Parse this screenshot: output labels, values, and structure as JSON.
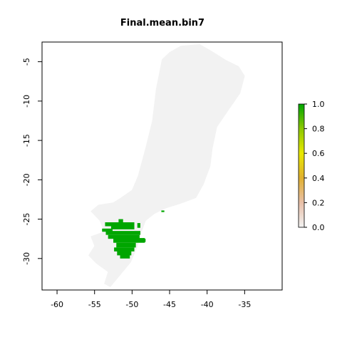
{
  "chart_data": {
    "type": "heatmap",
    "title": "Final.mean.bin7",
    "xlabel": "",
    "ylabel": "",
    "xlim": [
      -62,
      -30
    ],
    "ylim": [
      -34,
      -2.5
    ],
    "x_ticks": [
      -60,
      -55,
      -50,
      -45,
      -40,
      -35
    ],
    "y_ticks": [
      -5,
      -10,
      -15,
      -20,
      -25,
      -30
    ],
    "x_tick_labels": [
      "-60",
      "-55",
      "-50",
      "-45",
      "-40",
      "-35"
    ],
    "y_tick_labels": [
      "-5",
      "-10",
      "-15",
      "-20",
      "-25",
      "-30"
    ],
    "legend": {
      "position": "right",
      "ticks": [
        0.0,
        0.2,
        0.4,
        0.6,
        0.8,
        1.0
      ],
      "tick_labels": [
        "0.0",
        "0.2",
        "0.4",
        "0.6",
        "0.8",
        "1.0"
      ],
      "color_stops": [
        {
          "value": 0.0,
          "color": "#f2f2f2"
        },
        {
          "value": 0.2,
          "color": "#e8bfa8"
        },
        {
          "value": 0.4,
          "color": "#e0b030"
        },
        {
          "value": 0.6,
          "color": "#e8e800"
        },
        {
          "value": 0.8,
          "color": "#8cc800"
        },
        {
          "value": 1.0,
          "color": "#00a600"
        }
      ]
    },
    "background_region": {
      "value": 0,
      "color": "#f2f2f2",
      "outline": [
        [
          -55.5,
          -24.0
        ],
        [
          -54.5,
          -23.2
        ],
        [
          -52.5,
          -22.9
        ],
        [
          -51.5,
          -22.3
        ],
        [
          -50.0,
          -21.3
        ],
        [
          -49.2,
          -19.5
        ],
        [
          -48.2,
          -16.0
        ],
        [
          -47.3,
          -12.5
        ],
        [
          -46.8,
          -8.5
        ],
        [
          -46.0,
          -4.7
        ],
        [
          -45.0,
          -3.8
        ],
        [
          -43.5,
          -3.0
        ],
        [
          -41.0,
          -2.8
        ],
        [
          -39.5,
          -3.6
        ],
        [
          -37.5,
          -4.8
        ],
        [
          -35.8,
          -5.6
        ],
        [
          -35.0,
          -6.8
        ],
        [
          -35.6,
          -9.0
        ],
        [
          -37.2,
          -11.2
        ],
        [
          -38.7,
          -13.3
        ],
        [
          -39.3,
          -16.0
        ],
        [
          -39.6,
          -18.3
        ],
        [
          -40.5,
          -20.6
        ],
        [
          -41.5,
          -22.3
        ],
        [
          -43.5,
          -23.0
        ],
        [
          -45.5,
          -23.6
        ],
        [
          -47.0,
          -24.3
        ],
        [
          -48.2,
          -25.2
        ],
        [
          -48.7,
          -26.5
        ],
        [
          -49.3,
          -28.5
        ],
        [
          -50.2,
          -30.5
        ],
        [
          -51.5,
          -32.0
        ],
        [
          -52.9,
          -33.6
        ],
        [
          -53.7,
          -33.2
        ],
        [
          -53.2,
          -31.7
        ],
        [
          -54.8,
          -30.6
        ],
        [
          -55.8,
          -29.6
        ],
        [
          -55.0,
          -28.4
        ],
        [
          -55.5,
          -27.2
        ],
        [
          -53.7,
          -26.6
        ],
        [
          -54.3,
          -25.2
        ]
      ]
    },
    "values_region": {
      "value": 1,
      "color": "#00a600",
      "cells": [
        [
          -51.8,
          -25.0,
          -51.2,
          -25.6
        ],
        [
          -52.8,
          -25.4,
          -49.7,
          -26.3
        ],
        [
          -53.6,
          -25.4,
          -52.6,
          -25.9
        ],
        [
          -54.0,
          -26.2,
          -52.6,
          -26.6
        ],
        [
          -53.5,
          -26.5,
          -48.9,
          -27.0
        ],
        [
          -53.2,
          -27.0,
          -49.0,
          -27.5
        ],
        [
          -52.5,
          -27.4,
          -48.3,
          -28.0
        ],
        [
          -52.1,
          -28.0,
          -49.5,
          -28.6
        ],
        [
          -52.4,
          -28.6,
          -49.7,
          -29.1
        ],
        [
          -52.0,
          -29.0,
          -50.1,
          -29.6
        ],
        [
          -51.6,
          -29.5,
          -50.3,
          -30.0
        ],
        [
          -49.3,
          -25.5,
          -48.9,
          -26.1
        ],
        [
          -48.7,
          -27.5,
          -48.2,
          -27.9
        ],
        [
          -46.1,
          -23.9,
          -45.7,
          -24.1
        ]
      ]
    }
  },
  "colors": {
    "axes": "#000000",
    "background_region": "#f2f2f2",
    "value_high": "#00a600"
  }
}
